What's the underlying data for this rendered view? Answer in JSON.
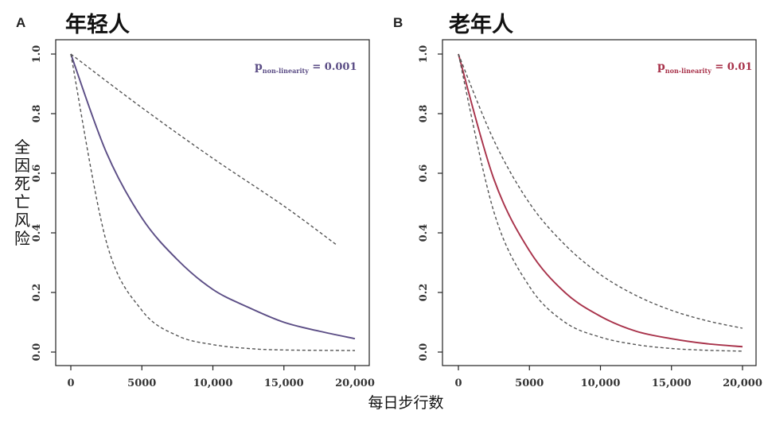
{
  "figure": {
    "ylabel": "全因死亡风险",
    "xlabel": "每日步行数"
  },
  "chart_data": [
    {
      "type": "line",
      "panel_letter": "A",
      "title": "年轻人",
      "annotation": {
        "p_symbol": "p",
        "p_subscript": "non-linearity",
        "p_rest": " = 0.001"
      },
      "accent_color": "#5b4d85",
      "xlim": [
        0,
        20000
      ],
      "ylim": [
        0,
        1
      ],
      "xticks": [
        0,
        5000,
        10000,
        15000,
        20000
      ],
      "xtick_labels": [
        "0",
        "5000",
        "10,000",
        "15,000",
        "20,000"
      ],
      "yticks": [
        0,
        0.2,
        0.4,
        0.6,
        0.8,
        1.0
      ],
      "ytick_labels": [
        "0.0",
        "0.2",
        "0.4",
        "0.6",
        "0.8",
        "1.0"
      ],
      "series": [
        {
          "role": "estimate",
          "style": "solid",
          "x": [
            0,
            2500,
            5000,
            7500,
            10000,
            12500,
            15000,
            17500,
            20000
          ],
          "y": [
            1.0,
            0.67,
            0.45,
            0.31,
            0.21,
            0.15,
            0.1,
            0.07,
            0.045
          ]
        },
        {
          "role": "upper_ci",
          "style": "dashed",
          "x": [
            0,
            5000,
            10000,
            15000,
            18700
          ],
          "y": [
            1.0,
            0.82,
            0.65,
            0.49,
            0.36
          ]
        },
        {
          "role": "lower_ci",
          "style": "dashed",
          "x": [
            0,
            2500,
            5000,
            7500,
            10000,
            12500,
            15000,
            20000
          ],
          "y": [
            1.0,
            0.37,
            0.14,
            0.055,
            0.025,
            0.012,
            0.007,
            0.005
          ]
        }
      ]
    },
    {
      "type": "line",
      "panel_letter": "B",
      "title": "老年人",
      "annotation": {
        "p_symbol": "p",
        "p_subscript": "non-linearity",
        "p_rest": " = 0.01"
      },
      "accent_color": "#a8324a",
      "xlim": [
        0,
        20000
      ],
      "ylim": [
        0,
        1
      ],
      "xticks": [
        0,
        5000,
        10000,
        15000,
        20000
      ],
      "xtick_labels": [
        "0",
        "5000",
        "10,000",
        "15,000",
        "20,000"
      ],
      "yticks": [
        0,
        0.2,
        0.4,
        0.6,
        0.8,
        1.0
      ],
      "ytick_labels": [
        "0.0",
        "0.2",
        "0.4",
        "0.6",
        "0.8",
        "1.0"
      ],
      "series": [
        {
          "role": "estimate",
          "style": "solid",
          "x": [
            0,
            2500,
            5000,
            7500,
            10000,
            12500,
            15000,
            17500,
            20000
          ],
          "y": [
            1.0,
            0.58,
            0.34,
            0.2,
            0.12,
            0.07,
            0.045,
            0.028,
            0.018
          ]
        },
        {
          "role": "upper_ci",
          "style": "dashed",
          "x": [
            0,
            2500,
            5000,
            7500,
            10000,
            12500,
            15000,
            17500,
            20000
          ],
          "y": [
            1.0,
            0.71,
            0.5,
            0.36,
            0.26,
            0.19,
            0.14,
            0.105,
            0.08
          ]
        },
        {
          "role": "lower_ci",
          "style": "dashed",
          "x": [
            0,
            2500,
            5000,
            7500,
            10000,
            12500,
            15000,
            17500,
            20000
          ],
          "y": [
            1.0,
            0.47,
            0.22,
            0.1,
            0.05,
            0.025,
            0.012,
            0.006,
            0.003
          ]
        }
      ]
    }
  ]
}
